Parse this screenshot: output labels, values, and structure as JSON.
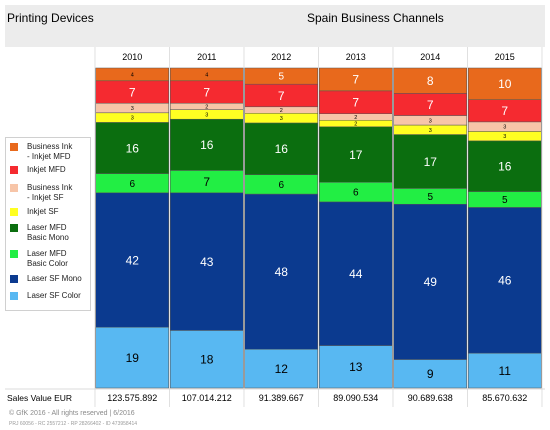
{
  "header": {
    "left_title": "Printing Devices",
    "right_title": "Spain Business Channels"
  },
  "chart_data": {
    "type": "bar",
    "stacked": true,
    "normalized_percent": true,
    "categories": [
      "2010",
      "2011",
      "2012",
      "2013",
      "2014",
      "2015"
    ],
    "series": [
      {
        "name": "Laser SF Color",
        "color": "#58b8f2",
        "values": [
          19,
          18,
          12,
          13,
          9,
          11
        ]
      },
      {
        "name": "Laser SF Mono",
        "color": "#0b3a8f",
        "values": [
          42,
          43,
          48,
          44,
          49,
          46
        ]
      },
      {
        "name": "Laser MFD Basic Color",
        "color": "#22ee44",
        "values": [
          6,
          7,
          6,
          6,
          5,
          5
        ]
      },
      {
        "name": "Laser MFD Basic Mono",
        "color": "#0b6e0f",
        "values": [
          16,
          16,
          16,
          17,
          17,
          16
        ]
      },
      {
        "name": "Inkjet SF",
        "color": "#ffff22",
        "values": [
          3,
          3,
          3,
          2,
          3,
          3
        ]
      },
      {
        "name": "Business Ink - Inkjet SF",
        "color": "#f7c5a8",
        "values": [
          3,
          2,
          2,
          2,
          3,
          3
        ]
      },
      {
        "name": "Inkjet MFD",
        "color": "#f52a30",
        "values": [
          7,
          7,
          7,
          7,
          7,
          7
        ]
      },
      {
        "name": "Business Ink - Inkjet MFD",
        "color": "#e8691c",
        "values": [
          4,
          4,
          5,
          7,
          8,
          10
        ]
      }
    ],
    "row_label": "Sales Value EUR",
    "totals": [
      "123.575.892",
      "107.014.212",
      "91.389.667",
      "89.090.534",
      "90.689.638",
      "85.670.632"
    ]
  },
  "legend": [
    {
      "lines": [
        "Business Ink",
        "- Inkjet MFD"
      ],
      "color": "#e8691c"
    },
    {
      "lines": [
        "Inkjet MFD"
      ],
      "color": "#f52a30"
    },
    {
      "lines": [
        "Business Ink",
        "- Inkjet SF"
      ],
      "color": "#f7c5a8"
    },
    {
      "lines": [
        "Inkjet SF"
      ],
      "color": "#ffff22"
    },
    {
      "lines": [
        "Laser MFD",
        "Basic Mono"
      ],
      "color": "#0b6e0f"
    },
    {
      "lines": [
        "Laser MFD",
        "Basic Color"
      ],
      "color": "#22ee44"
    },
    {
      "lines": [
        "Laser SF Mono"
      ],
      "color": "#0b3a8f"
    },
    {
      "lines": [
        "Laser SF Color"
      ],
      "color": "#58b8f2"
    }
  ],
  "footer": {
    "copyright": "© GfK 2016 - All rights reserved | 6/2016",
    "ids": "PRJ 60056 - RC 2557212 - RP 28266402 - ID 473958414"
  }
}
